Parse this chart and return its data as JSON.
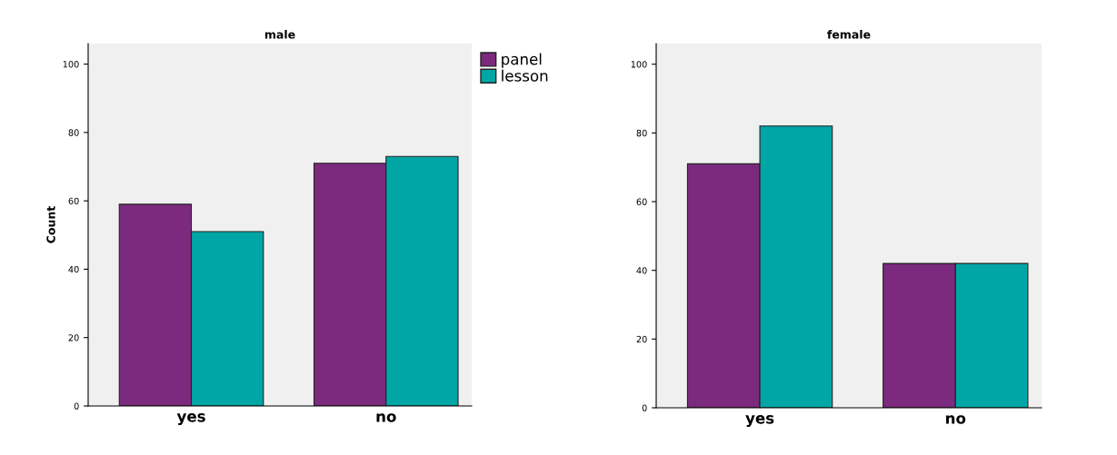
{
  "chart_data": [
    {
      "type": "bar",
      "title": "male",
      "ylabel": "Count",
      "categories": [
        "yes",
        "no"
      ],
      "series": [
        {
          "name": "panel",
          "color": "#7b2a7d",
          "values": [
            59,
            71
          ]
        },
        {
          "name": "lesson",
          "color": "#00a6a6",
          "values": [
            51,
            73
          ]
        }
      ],
      "ylim": [
        0,
        106
      ],
      "yticks": [
        0,
        20,
        40,
        60,
        80,
        100
      ],
      "grid": false,
      "legend": "top right"
    },
    {
      "type": "bar",
      "title": "female",
      "categories": [
        "yes",
        "no"
      ],
      "series": [
        {
          "color": "#7b2a7d",
          "values": [
            71,
            42
          ]
        },
        {
          "color": "#00a6a6",
          "values": [
            82,
            42
          ]
        }
      ],
      "ylim": [
        0,
        106
      ],
      "yticks": [
        0,
        20,
        40,
        60,
        80,
        100
      ],
      "grid": false
    }
  ]
}
